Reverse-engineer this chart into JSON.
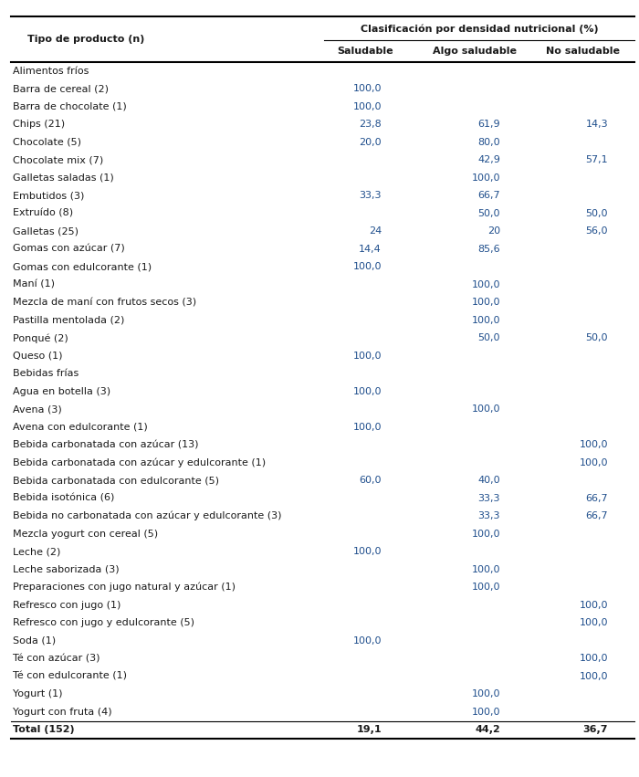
{
  "header_row1_col1": "Tipo de producto (n)",
  "header_row1_col2": "Clasificación por densidad nutricional (%)",
  "header_row2_col2": "Saludable",
  "header_row2_col3": "Algo saludable",
  "header_row2_col4": "No saludable",
  "rows": [
    {
      "label": "Alimentos fríos",
      "is_section": true,
      "s": "",
      "as": "",
      "ns": ""
    },
    {
      "label": "Barra de cereal (2)",
      "is_section": false,
      "s": "100,0",
      "as": "",
      "ns": ""
    },
    {
      "label": "Barra de chocolate (1)",
      "is_section": false,
      "s": "100,0",
      "as": "",
      "ns": ""
    },
    {
      "label": "Chips (21)",
      "is_section": false,
      "s": "23,8",
      "as": "61,9",
      "ns": "14,3"
    },
    {
      "label": "Chocolate (5)",
      "is_section": false,
      "s": "20,0",
      "as": "80,0",
      "ns": ""
    },
    {
      "label": "Chocolate mix (7)",
      "is_section": false,
      "s": "",
      "as": "42,9",
      "ns": "57,1"
    },
    {
      "label": "Galletas saladas (1)",
      "is_section": false,
      "s": "",
      "as": "100,0",
      "ns": ""
    },
    {
      "label": "Embutidos (3)",
      "is_section": false,
      "s": "33,3",
      "as": "66,7",
      "ns": ""
    },
    {
      "label": "Extruído (8)",
      "is_section": false,
      "s": "",
      "as": "50,0",
      "ns": "50,0"
    },
    {
      "label": "Galletas (25)",
      "is_section": false,
      "s": "24",
      "as": "20",
      "ns": "56,0"
    },
    {
      "label": "Gomas con azúcar (7)",
      "is_section": false,
      "s": "14,4",
      "as": "85,6",
      "ns": ""
    },
    {
      "label": "Gomas con edulcorante (1)",
      "is_section": false,
      "s": "100,0",
      "as": "",
      "ns": ""
    },
    {
      "label": "Maní (1)",
      "is_section": false,
      "s": "",
      "as": "100,0",
      "ns": ""
    },
    {
      "label": "Mezcla de maní con frutos secos (3)",
      "is_section": false,
      "s": "",
      "as": "100,0",
      "ns": ""
    },
    {
      "label": "Pastilla mentolada (2)",
      "is_section": false,
      "s": "",
      "as": "100,0",
      "ns": ""
    },
    {
      "label": "Ponqué (2)",
      "is_section": false,
      "s": "",
      "as": "50,0",
      "ns": "50,0"
    },
    {
      "label": "Queso (1)",
      "is_section": false,
      "s": "100,0",
      "as": "",
      "ns": ""
    },
    {
      "label": "Bebidas frías",
      "is_section": true,
      "s": "",
      "as": "",
      "ns": ""
    },
    {
      "label": "Agua en botella (3)",
      "is_section": false,
      "s": "100,0",
      "as": "",
      "ns": ""
    },
    {
      "label": "Avena (3)",
      "is_section": false,
      "s": "",
      "as": "100,0",
      "ns": ""
    },
    {
      "label": "Avena con edulcorante (1)",
      "is_section": false,
      "s": "100,0",
      "as": "",
      "ns": ""
    },
    {
      "label": "Bebida carbonatada con azúcar (13)",
      "is_section": false,
      "s": "",
      "as": "",
      "ns": "100,0"
    },
    {
      "label": "Bebida carbonatada con azúcar y edulcorante (1)",
      "is_section": false,
      "s": "",
      "as": "",
      "ns": "100,0"
    },
    {
      "label": "Bebida carbonatada con edulcorante (5)",
      "is_section": false,
      "s": "60,0",
      "as": "40,0",
      "ns": ""
    },
    {
      "label": "Bebida isotónica (6)",
      "is_section": false,
      "s": "",
      "as": "33,3",
      "ns": "66,7"
    },
    {
      "label": "Bebida no carbonatada con azúcar y edulcorante (3)",
      "is_section": false,
      "s": "",
      "as": "33,3",
      "ns": "66,7"
    },
    {
      "label": "Mezcla yogurt con cereal (5)",
      "is_section": false,
      "s": "",
      "as": "100,0",
      "ns": ""
    },
    {
      "label": "Leche (2)",
      "is_section": false,
      "s": "100,0",
      "as": "",
      "ns": ""
    },
    {
      "label": "Leche saborizada (3)",
      "is_section": false,
      "s": "",
      "as": "100,0",
      "ns": ""
    },
    {
      "label": "Preparaciones con jugo natural y azúcar (1)",
      "is_section": false,
      "s": "",
      "as": "100,0",
      "ns": ""
    },
    {
      "label": "Refresco con jugo (1)",
      "is_section": false,
      "s": "",
      "as": "",
      "ns": "100,0"
    },
    {
      "label": "Refresco con jugo y edulcorante (5)",
      "is_section": false,
      "s": "",
      "as": "",
      "ns": "100,0"
    },
    {
      "label": "Soda (1)",
      "is_section": false,
      "s": "100,0",
      "as": "",
      "ns": ""
    },
    {
      "label": "Té con azúcar (3)",
      "is_section": false,
      "s": "",
      "as": "",
      "ns": "100,0"
    },
    {
      "label": "Té con edulcorante (1)",
      "is_section": false,
      "s": "",
      "as": "",
      "ns": "100,0"
    },
    {
      "label": "Yogurt (1)",
      "is_section": false,
      "s": "",
      "as": "100,0",
      "ns": ""
    },
    {
      "label": "Yogurt con fruta (4)",
      "is_section": false,
      "s": "",
      "as": "100,0",
      "ns": ""
    },
    {
      "label": "Total (152)",
      "is_section": false,
      "is_total": true,
      "s": "19,1",
      "as": "44,2",
      "ns": "36,7"
    }
  ],
  "text_color_normal": "#1a1a1a",
  "text_color_blue": "#1f4e8c",
  "background_color": "#ffffff",
  "line_color": "#000000",
  "fontsize": 8.0
}
